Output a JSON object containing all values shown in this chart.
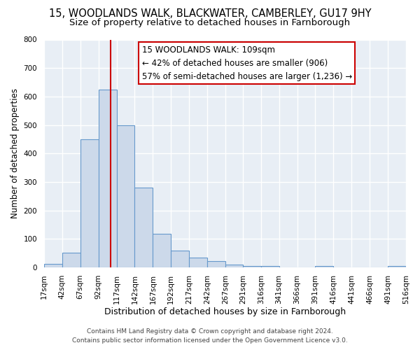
{
  "title": "15, WOODLANDS WALK, BLACKWATER, CAMBERLEY, GU17 9HY",
  "subtitle": "Size of property relative to detached houses in Farnborough",
  "xlabel": "Distribution of detached houses by size in Farnborough",
  "ylabel": "Number of detached properties",
  "bin_edges": [
    17,
    42,
    67,
    92,
    117,
    142,
    167,
    192,
    217,
    242,
    267,
    291,
    316,
    341,
    366,
    391,
    416,
    441,
    466,
    491,
    516
  ],
  "bar_heights": [
    12,
    52,
    450,
    625,
    500,
    280,
    118,
    60,
    35,
    22,
    10,
    5,
    5,
    0,
    0,
    5,
    0,
    0,
    0,
    5
  ],
  "bar_color": "#ccd9ea",
  "bar_edge_color": "#6699cc",
  "property_size": 109,
  "vline_color": "#cc0000",
  "annotation_line1": "15 WOODLANDS WALK: 109sqm",
  "annotation_line2": "← 42% of detached houses are smaller (906)",
  "annotation_line3": "57% of semi-detached houses are larger (1,236) →",
  "annotation_box_color": "#ffffff",
  "annotation_box_edge_color": "#cc0000",
  "ylim": [
    0,
    800
  ],
  "yticks": [
    0,
    100,
    200,
    300,
    400,
    500,
    600,
    700,
    800
  ],
  "footer_line1": "Contains HM Land Registry data © Crown copyright and database right 2024.",
  "footer_line2": "Contains public sector information licensed under the Open Government Licence v3.0.",
  "bg_color": "#ffffff",
  "plot_bg_color": "#e8eef5",
  "grid_color": "#ffffff",
  "title_fontsize": 10.5,
  "subtitle_fontsize": 9.5,
  "xlabel_fontsize": 9,
  "ylabel_fontsize": 8.5,
  "tick_fontsize": 7.5,
  "annotation_fontsize": 8.5,
  "footer_fontsize": 6.5
}
